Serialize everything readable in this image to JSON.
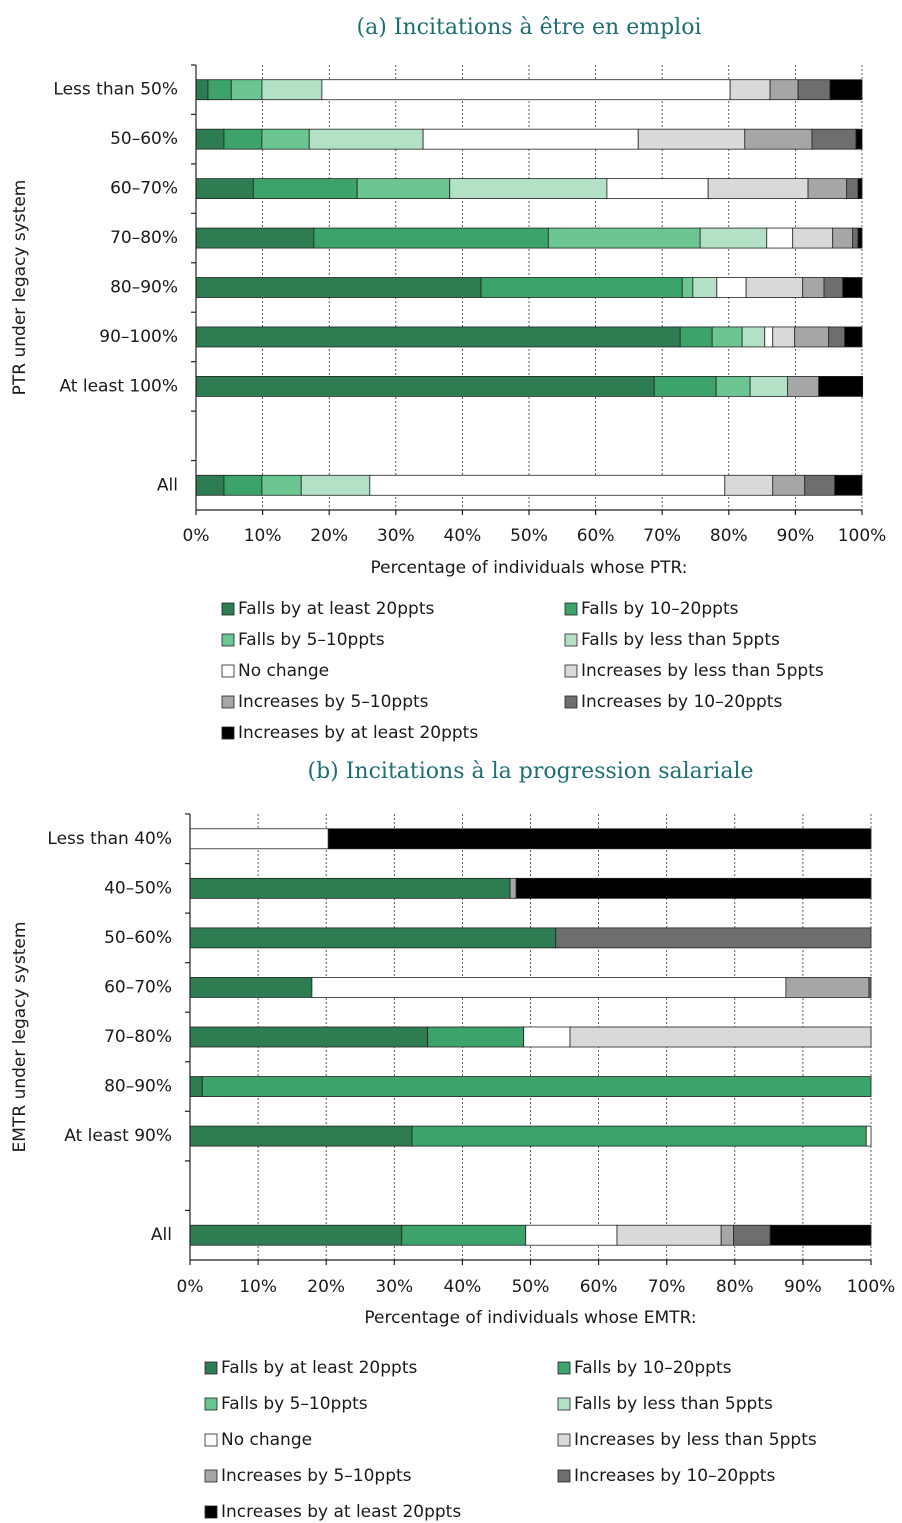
{
  "chart_data": [
    {
      "type": "barh-stacked",
      "title": "(a) Incitations à être en emploi",
      "y_label": "PTR under legacy system",
      "x_label": "Percentage of individuals whose PTR:",
      "categories": [
        "Less than 50%",
        "50–60%",
        "60–70%",
        "70–80%",
        "80–90%",
        "90–100%",
        "At least 100%",
        null,
        "All"
      ],
      "xlim": [
        0,
        100
      ],
      "xticks": [
        {
          "value": 0,
          "label": "0%"
        },
        {
          "value": 10,
          "label": "10%"
        },
        {
          "value": 20,
          "label": "20%"
        },
        {
          "value": 30,
          "label": "30%"
        },
        {
          "value": 40,
          "label": "40%"
        },
        {
          "value": 50,
          "label": "50%"
        },
        {
          "value": 60,
          "label": "60%"
        },
        {
          "value": 70,
          "label": "70%"
        },
        {
          "value": 80,
          "label": "80%"
        },
        {
          "value": 90,
          "label": "90%"
        },
        {
          "value": 100,
          "label": "100%"
        }
      ],
      "grid": true,
      "series": [
        {
          "name": "Falls by at least 20ppts",
          "color": "#2e7d52",
          "values": [
            1.8,
            4.2,
            8.6,
            17.7,
            42.8,
            72.7,
            68.8,
            null,
            4.2
          ]
        },
        {
          "name": "Falls by 10–20ppts",
          "color": "#3ca46a",
          "values": [
            3.5,
            5.7,
            15.6,
            35.2,
            30.2,
            4.8,
            9.3,
            null,
            5.7
          ]
        },
        {
          "name": "Falls by 5–10ppts",
          "color": "#6cc692",
          "values": [
            4.6,
            7.1,
            13.9,
            22.8,
            1.6,
            4.5,
            5.1,
            null,
            5.9
          ]
        },
        {
          "name": "Falls by less than 5ppts",
          "color": "#b3e1c5",
          "values": [
            9.0,
            17.1,
            23.6,
            10.0,
            3.6,
            3.4,
            5.6,
            null,
            10.3
          ]
        },
        {
          "name": "No change",
          "color": "#ffffff",
          "values": [
            61.3,
            32.3,
            15.2,
            3.9,
            4.4,
            1.2,
            0,
            null,
            53.3
          ]
        },
        {
          "name": "Increases by less than 5ppts",
          "color": "#d9d9d9",
          "values": [
            6.0,
            16.0,
            15.0,
            6.0,
            8.5,
            3.3,
            0,
            null,
            7.2
          ]
        },
        {
          "name": "Increases by 5–10ppts",
          "color": "#a6a6a6",
          "values": [
            4.2,
            10.1,
            5.8,
            3.0,
            3.2,
            5.1,
            4.7,
            null,
            4.8
          ]
        },
        {
          "name": "Increases by 10–20ppts",
          "color": "#6e6e6e",
          "values": [
            4.8,
            6.6,
            1.7,
            0.8,
            2.8,
            2.4,
            0,
            null,
            4.5
          ]
        },
        {
          "name": "Increases by at least 20ppts",
          "color": "#000000",
          "values": [
            4.8,
            0.9,
            0.6,
            0.6,
            2.9,
            2.6,
            6.6,
            null,
            4.1
          ]
        }
      ]
    },
    {
      "type": "barh-stacked",
      "title": "(b) Incitations à la progression salariale",
      "y_label": "EMTR under legacy system",
      "x_label": "Percentage of individuals whose EMTR:",
      "categories": [
        "Less than 40%",
        "40–50%",
        "50–60%",
        "60–70%",
        "70–80%",
        "80–90%",
        "At least 90%",
        null,
        "All"
      ],
      "xlim": [
        0,
        100
      ],
      "xticks": [
        {
          "value": 0,
          "label": "0%"
        },
        {
          "value": 10,
          "label": "10%"
        },
        {
          "value": 20,
          "label": "20%"
        },
        {
          "value": 30,
          "label": "30%"
        },
        {
          "value": 40,
          "label": "40%"
        },
        {
          "value": 50,
          "label": "50%"
        },
        {
          "value": 60,
          "label": "60%"
        },
        {
          "value": 70,
          "label": "70%"
        },
        {
          "value": 80,
          "label": "80%"
        },
        {
          "value": 90,
          "label": "90%"
        },
        {
          "value": 100,
          "label": "100%"
        }
      ],
      "grid": true,
      "series": [
        {
          "name": "Falls by at least 20ppts",
          "color": "#2e7d52",
          "values": [
            0,
            47.0,
            53.7,
            17.9,
            34.9,
            1.8,
            32.6,
            null,
            31.1
          ]
        },
        {
          "name": "Falls by 10–20ppts",
          "color": "#3ca46a",
          "values": [
            0,
            0,
            0,
            0,
            14.1,
            98.2,
            66.7,
            null,
            18.2
          ]
        },
        {
          "name": "Falls by 5–10ppts",
          "color": "#6cc692",
          "values": [
            0,
            0,
            0,
            0,
            0,
            0,
            0,
            null,
            0
          ]
        },
        {
          "name": "Falls by less than 5ppts",
          "color": "#b3e1c5",
          "values": [
            0,
            0,
            0,
            0,
            0,
            0,
            0,
            null,
            0
          ]
        },
        {
          "name": "No change",
          "color": "#ffffff",
          "values": [
            20.3,
            0,
            0,
            69.6,
            6.8,
            0,
            0.7,
            null,
            13.4
          ]
        },
        {
          "name": "Increases by less than 5ppts",
          "color": "#d9d9d9",
          "values": [
            0,
            0,
            0,
            0,
            44.2,
            0,
            0,
            null,
            15.3
          ]
        },
        {
          "name": "Increases by 5–10ppts",
          "color": "#a6a6a6",
          "values": [
            0,
            0.9,
            0,
            12.2,
            0,
            0,
            0,
            null,
            1.8
          ]
        },
        {
          "name": "Increases by 10–20ppts",
          "color": "#6e6e6e",
          "values": [
            0,
            0,
            46.3,
            0.3,
            0,
            0,
            0,
            null,
            5.4
          ]
        },
        {
          "name": "Increases by at least 20ppts",
          "color": "#000000",
          "values": [
            79.7,
            52.1,
            0,
            0,
            0,
            0,
            0,
            null,
            14.8
          ]
        }
      ]
    }
  ]
}
